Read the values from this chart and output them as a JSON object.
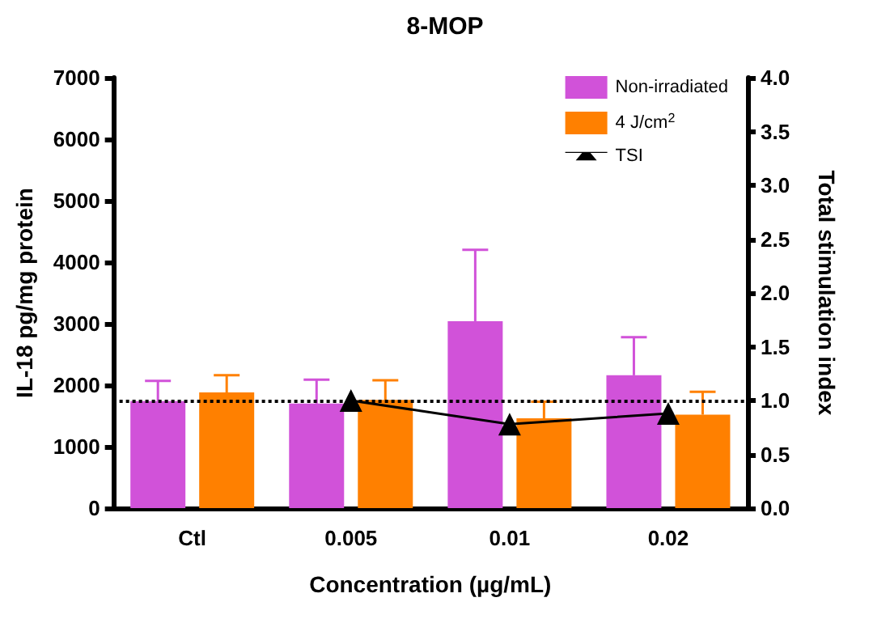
{
  "chart_data": {
    "type": "bar",
    "title": "8-MOP",
    "xlabel": "Concentration (µg/mL)",
    "ylabel": "IL-18 pg/mg protein",
    "y2label": "Total stimulation index",
    "categories": [
      "Ctl",
      "0.005",
      "0.01",
      "0.02"
    ],
    "series": [
      {
        "name": "Non-irradiated",
        "color": "#d152d9",
        "values": [
          1740,
          1700,
          3040,
          2160
        ],
        "errors": [
          [
            1740,
            2070
          ],
          [
            1700,
            2090
          ],
          [
            3040,
            4200
          ],
          [
            2160,
            2780
          ]
        ]
      },
      {
        "name": "4 J/cm$^{2}$",
        "color": "#ff8000",
        "values": [
          1880,
          1760,
          1460,
          1520
        ],
        "errors": [
          [
            1880,
            2160
          ],
          [
            1760,
            2080
          ],
          [
            1460,
            1730
          ],
          [
            1520,
            1890
          ]
        ]
      },
      {
        "name": "TSI",
        "type": "line",
        "axis": "y2",
        "color": "#000000",
        "marker": "triangle",
        "values": [
          null,
          1.0,
          0.78,
          0.88
        ]
      }
    ],
    "ylim": [
      0,
      7000
    ],
    "yticks": [
      0,
      1000,
      2000,
      3000,
      4000,
      5000,
      6000,
      7000
    ],
    "y2lim": [
      0,
      4
    ],
    "y2ticks": [
      {
        "value": 0,
        "label": "0.0"
      },
      {
        "value": 0.5,
        "label": "0.5"
      },
      {
        "value": 1,
        "label": "1.0"
      },
      {
        "value": 1.5,
        "label": "1.5"
      },
      {
        "value": 2,
        "label": "2.0"
      },
      {
        "value": 2.5,
        "label": "2.5"
      },
      {
        "value": 3,
        "label": "3.0"
      },
      {
        "value": 3.5,
        "label": "3.5"
      },
      {
        "value": 4,
        "label": "4.0"
      }
    ],
    "ref_lines": [
      {
        "axis": "y2",
        "value": 1.0,
        "color": "#000000",
        "line_style": "dotted"
      }
    ],
    "grid": false,
    "legend": "top right"
  }
}
